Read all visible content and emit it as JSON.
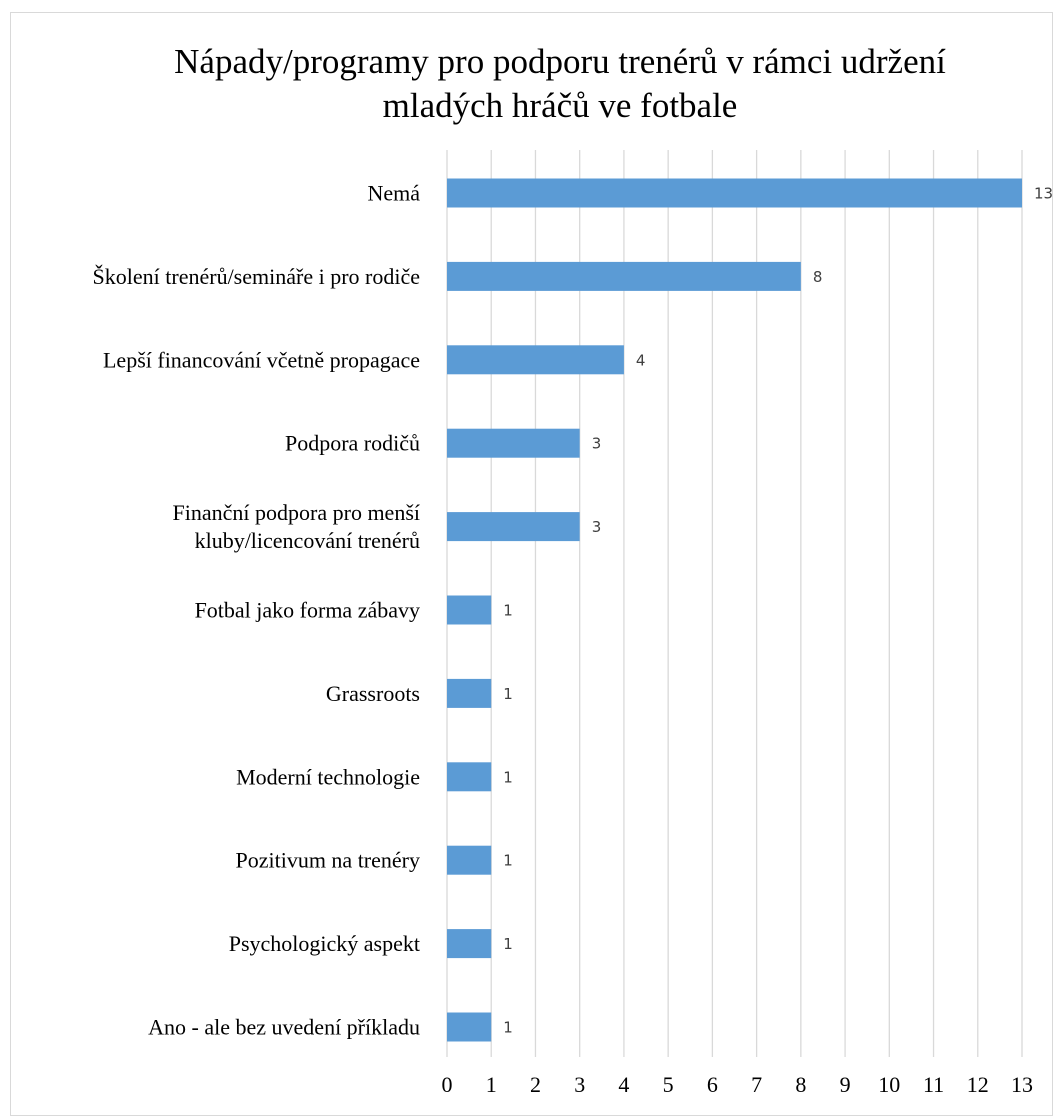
{
  "chart_data": {
    "type": "bar",
    "orientation": "horizontal",
    "title_lines": [
      "Nápady/programy pro podporu trenérů v rámci udržení",
      "mladých hráčů ve fotbale"
    ],
    "categories": [
      "Nemá",
      "Školení trenérů/semináře i pro rodiče",
      "Lepší financování včetně propagace",
      "Podpora rodičů",
      "Finanční podpora pro menší kluby/licencování trenérů",
      "Fotbal jako forma zábavy",
      "Grassroots",
      "Moderní technologie",
      "Pozitivum na trenéry",
      "Psychologický aspekt",
      "Ano - ale bez uvedení příkladu"
    ],
    "category_lines": [
      [
        "Nemá"
      ],
      [
        "Školení trenérů/semináře i pro rodiče"
      ],
      [
        "Lepší financování včetně propagace"
      ],
      [
        "Podpora rodičů"
      ],
      [
        "Finanční podpora pro menší",
        "kluby/licencování trenérů"
      ],
      [
        "Fotbal jako forma zábavy"
      ],
      [
        "Grassroots"
      ],
      [
        "Moderní technologie"
      ],
      [
        "Pozitivum na trenéry"
      ],
      [
        "Psychologický aspekt"
      ],
      [
        "Ano - ale bez uvedení příkladu"
      ]
    ],
    "values": [
      13,
      8,
      4,
      3,
      3,
      1,
      1,
      1,
      1,
      1,
      1
    ],
    "xlim": [
      0,
      13
    ],
    "xticks": [
      0,
      1,
      2,
      3,
      4,
      5,
      6,
      7,
      8,
      9,
      10,
      11,
      12,
      13
    ],
    "grid": "vertical",
    "legend": "none",
    "bar_color": "#5b9bd5",
    "grid_color": "#d9d9d9",
    "data_labels": true
  }
}
